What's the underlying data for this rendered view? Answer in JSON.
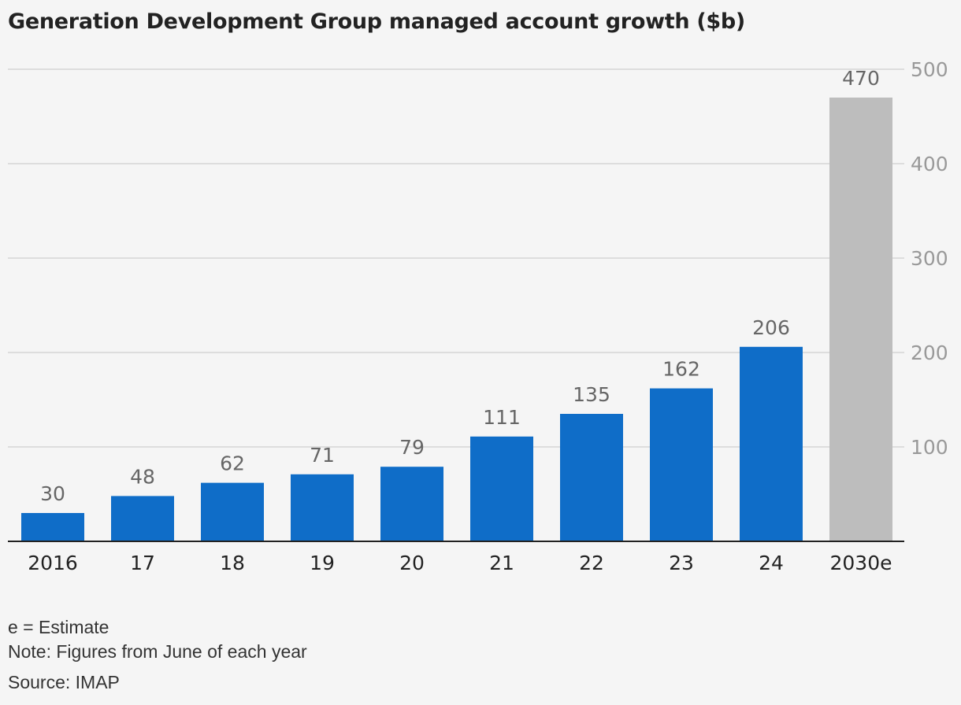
{
  "chart_data": {
    "type": "bar",
    "title": "Generation Development Group managed account growth ($b)",
    "xlabel": "",
    "ylabel": "",
    "categories": [
      "2016",
      "17",
      "18",
      "19",
      "20",
      "21",
      "22",
      "23",
      "24",
      "2030e"
    ],
    "values": [
      30,
      48,
      62,
      71,
      79,
      111,
      135,
      162,
      206,
      470
    ],
    "data_labels": [
      "30",
      "48",
      "62",
      "71",
      "79",
      "111",
      "135",
      "162",
      "206",
      "470"
    ],
    "estimate_categories": [
      "2030e"
    ],
    "ylim": [
      0,
      500
    ],
    "yticks": [
      100,
      200,
      300,
      400,
      500
    ],
    "ytick_labels": [
      "100",
      "200",
      "300",
      "400",
      "500"
    ],
    "y_axis_side": "right",
    "grid": true,
    "legend": "none"
  },
  "colors": {
    "actual_bar": "#0f6dc8",
    "estimate_bar": "#bdbdbd",
    "gridline": "#dddddd",
    "axis_line": "#222222",
    "data_label": "#666666",
    "tick_label_y": "#999999",
    "tick_label_x": "#222222",
    "background": "#f5f5f5"
  },
  "footnotes": {
    "estimate": "e = Estimate",
    "note": "Note: Figures from June of each year",
    "source": "Source: IMAP"
  }
}
